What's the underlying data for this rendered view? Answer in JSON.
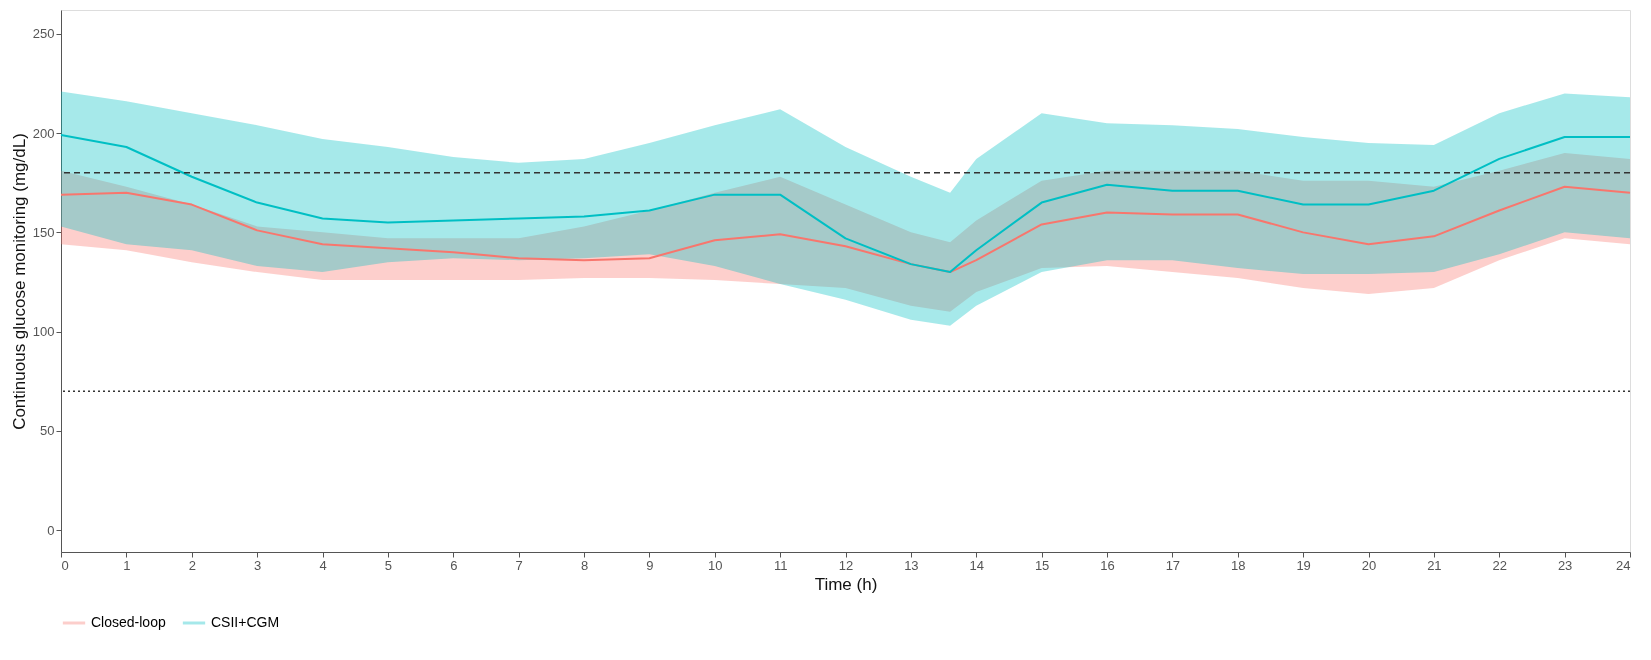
{
  "chart_data": {
    "type": "line",
    "xlabel": "Time (h)",
    "ylabel": "Continuous glucose monitoring (mg/dL)",
    "x": [
      0,
      1,
      2,
      3,
      4,
      5,
      6,
      7,
      8,
      9,
      10,
      11,
      12,
      13,
      13.6,
      14,
      15,
      16,
      17,
      18,
      19,
      20,
      21,
      22,
      23,
      24
    ],
    "series": [
      {
        "name": "Closed-loop",
        "color": "#f8766d",
        "values": [
          169,
          170,
          164,
          151,
          144,
          142,
          140,
          137,
          136,
          137,
          146,
          149,
          143,
          134,
          130,
          136,
          154,
          160,
          159,
          159,
          150,
          144,
          148,
          161,
          173,
          170
        ],
        "lower": [
          144,
          141,
          135,
          130,
          126,
          126,
          126,
          126,
          127,
          127,
          126,
          124,
          122,
          113,
          110,
          120,
          132,
          133,
          130,
          127,
          122,
          119,
          122,
          136,
          147,
          144
        ],
        "upper": [
          181,
          173,
          164,
          153,
          150,
          147,
          147,
          147,
          153,
          161,
          170,
          178,
          164,
          150,
          145,
          156,
          176,
          181,
          181,
          181,
          176,
          176,
          173,
          181,
          190,
          187
        ]
      },
      {
        "name": "CSII+CGM",
        "color": "#00bfc4",
        "values": [
          199,
          193,
          178,
          165,
          157,
          155,
          156,
          157,
          158,
          161,
          169,
          169,
          147,
          134,
          130,
          141,
          165,
          174,
          171,
          171,
          164,
          164,
          171,
          187,
          198,
          198
        ],
        "lower": [
          153,
          144,
          141,
          133,
          130,
          135,
          137,
          136,
          137,
          139,
          133,
          124,
          116,
          106,
          103,
          113,
          130,
          136,
          136,
          132,
          129,
          129,
          130,
          139,
          150,
          147
        ],
        "upper": [
          221,
          216,
          210,
          204,
          197,
          193,
          188,
          185,
          187,
          195,
          204,
          212,
          193,
          178,
          170,
          187,
          210,
          205,
          204,
          202,
          198,
          195,
          194,
          210,
          220,
          218
        ]
      }
    ],
    "xlim": [
      0,
      24
    ],
    "xticks": [
      0,
      1,
      2,
      3,
      4,
      5,
      6,
      7,
      8,
      9,
      10,
      11,
      12,
      13,
      14,
      15,
      16,
      17,
      18,
      19,
      20,
      21,
      22,
      23,
      24
    ],
    "ylim": [
      -11,
      262
    ],
    "yticks": [
      0,
      50,
      100,
      150,
      200,
      250
    ],
    "ref_lines": [
      {
        "axis": "y",
        "value": 180,
        "line_style": "dashed",
        "color": "#333333"
      },
      {
        "axis": "y",
        "value": 70,
        "line_style": "dotted",
        "color": "#333333"
      }
    ],
    "grid": false,
    "legend": "bottom",
    "line_style": "solid",
    "marker": "none"
  }
}
